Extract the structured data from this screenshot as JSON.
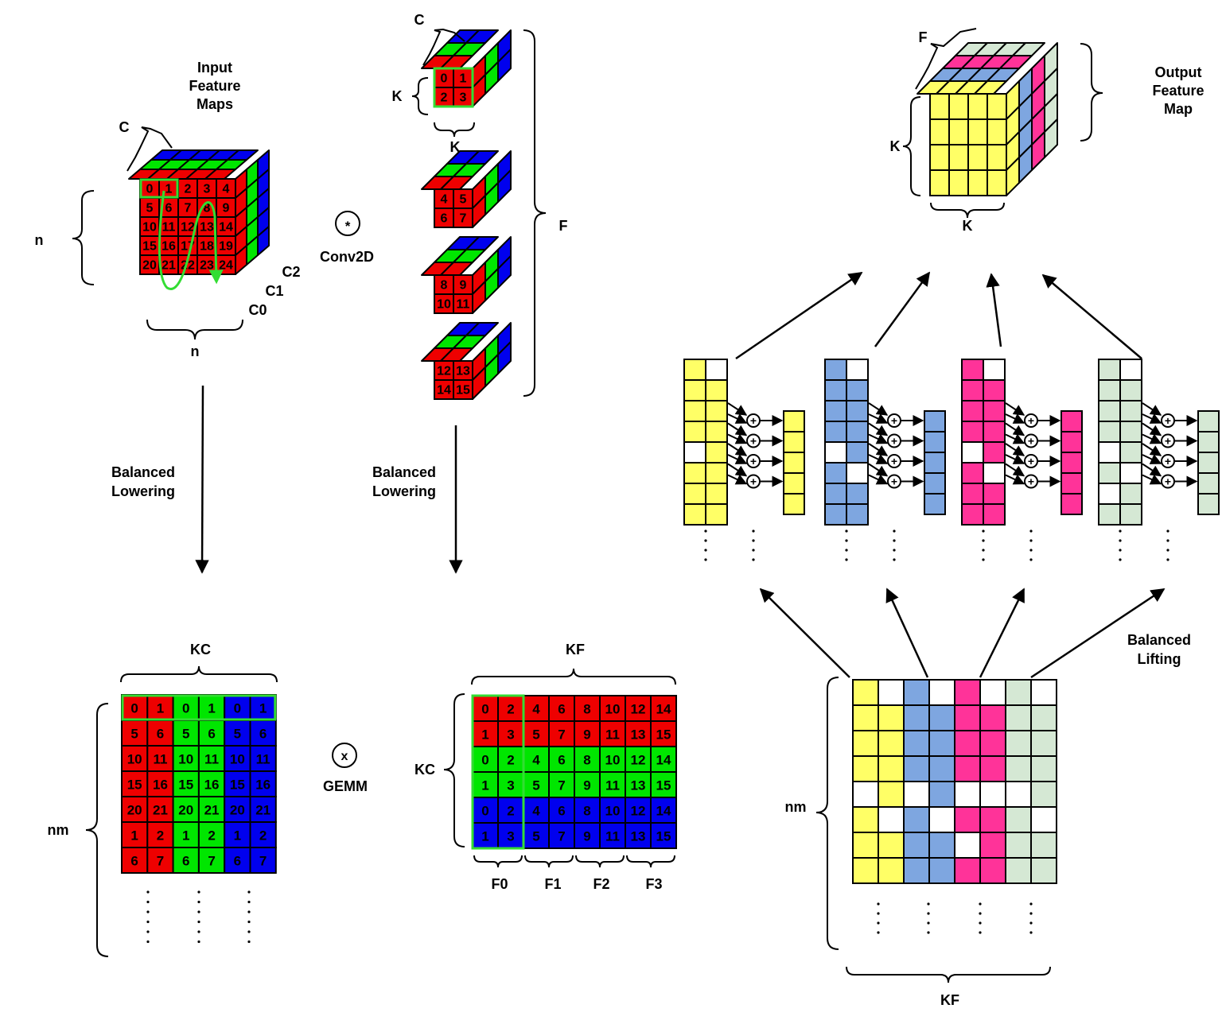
{
  "colors": {
    "red": "#ee0000",
    "green": "#00e600",
    "blue": "#0000ee",
    "yellow": "#ffff66",
    "steel_blue": "#7ea6e0",
    "pink": "#ff3399",
    "sage": "#d5e8d4",
    "highlight": "#33dd33"
  },
  "input_cube": {
    "title_lines": [
      "Input",
      "Feature",
      "Maps"
    ],
    "depth_label": "C",
    "height_label": "n",
    "width_label": "n",
    "channel_labels": [
      "C2",
      "C1",
      "C0"
    ],
    "front_numbers": [
      "0",
      "1",
      "2",
      "3",
      "4",
      "5",
      "6",
      "7",
      "8",
      "9",
      "10",
      "11",
      "12",
      "13",
      "14",
      "15",
      "16",
      "17",
      "18",
      "19",
      "20",
      "21",
      "22",
      "23",
      "24"
    ]
  },
  "conv_op": {
    "symbol": "*",
    "label": "Conv2D"
  },
  "filters": {
    "depth_label": "C",
    "k_label_left": "K",
    "k_label_bottom": "K",
    "f_label": "F",
    "cubes": [
      {
        "numbers": [
          "0",
          "1",
          "2",
          "3"
        ]
      },
      {
        "numbers": [
          "4",
          "5",
          "6",
          "7"
        ]
      },
      {
        "numbers": [
          "8",
          "9",
          "10",
          "11"
        ]
      },
      {
        "numbers": [
          "12",
          "13",
          "14",
          "15"
        ]
      }
    ]
  },
  "lowering_left": {
    "label_lines": [
      "Balanced",
      "Lowering"
    ]
  },
  "lowering_right": {
    "label_lines": [
      "Balanced",
      "Lowering"
    ]
  },
  "input_matrix": {
    "top_label": "KC",
    "left_label": "nm",
    "column_colors": [
      "red",
      "red",
      "green",
      "green",
      "blue",
      "blue"
    ],
    "rows": [
      [
        "0",
        "1",
        "0",
        "1",
        "0",
        "1"
      ],
      [
        "5",
        "6",
        "5",
        "6",
        "5",
        "6"
      ],
      [
        "10",
        "11",
        "10",
        "11",
        "10",
        "11"
      ],
      [
        "15",
        "16",
        "15",
        "16",
        "15",
        "16"
      ],
      [
        "20",
        "21",
        "20",
        "21",
        "20",
        "21"
      ],
      [
        "1",
        "2",
        "1",
        "2",
        "1",
        "2"
      ],
      [
        "6",
        "7",
        "6",
        "7",
        "6",
        "7"
      ]
    ]
  },
  "gemm_op": {
    "symbol": "x",
    "label": "GEMM"
  },
  "filter_matrix": {
    "top_label": "KF",
    "left_label": "KC",
    "row_colors": [
      "red",
      "red",
      "green",
      "green",
      "blue",
      "blue"
    ],
    "rows": [
      [
        "0",
        "2",
        "4",
        "6",
        "8",
        "10",
        "12",
        "14"
      ],
      [
        "1",
        "3",
        "5",
        "7",
        "9",
        "11",
        "13",
        "15"
      ],
      [
        "0",
        "2",
        "4",
        "6",
        "8",
        "10",
        "12",
        "14"
      ],
      [
        "1",
        "3",
        "5",
        "7",
        "9",
        "11",
        "13",
        "15"
      ],
      [
        "0",
        "2",
        "4",
        "6",
        "8",
        "10",
        "12",
        "14"
      ],
      [
        "1",
        "3",
        "5",
        "7",
        "9",
        "11",
        "13",
        "15"
      ]
    ],
    "group_labels": [
      "F0",
      "F1",
      "F2",
      "F3"
    ]
  },
  "output_matrix": {
    "left_label": "nm",
    "bottom_label": "KF",
    "lifting_label_lines": [
      "Balanced",
      "Lifting"
    ]
  },
  "lifting": {
    "column_colors": [
      "yellow",
      "steel_blue",
      "pink",
      "sage"
    ],
    "plus_symbol": "+"
  },
  "output_cube": {
    "title_lines": [
      "Output",
      "Feature",
      "Map"
    ],
    "depth_label": "F",
    "height_label": "K",
    "width_label": "K"
  }
}
